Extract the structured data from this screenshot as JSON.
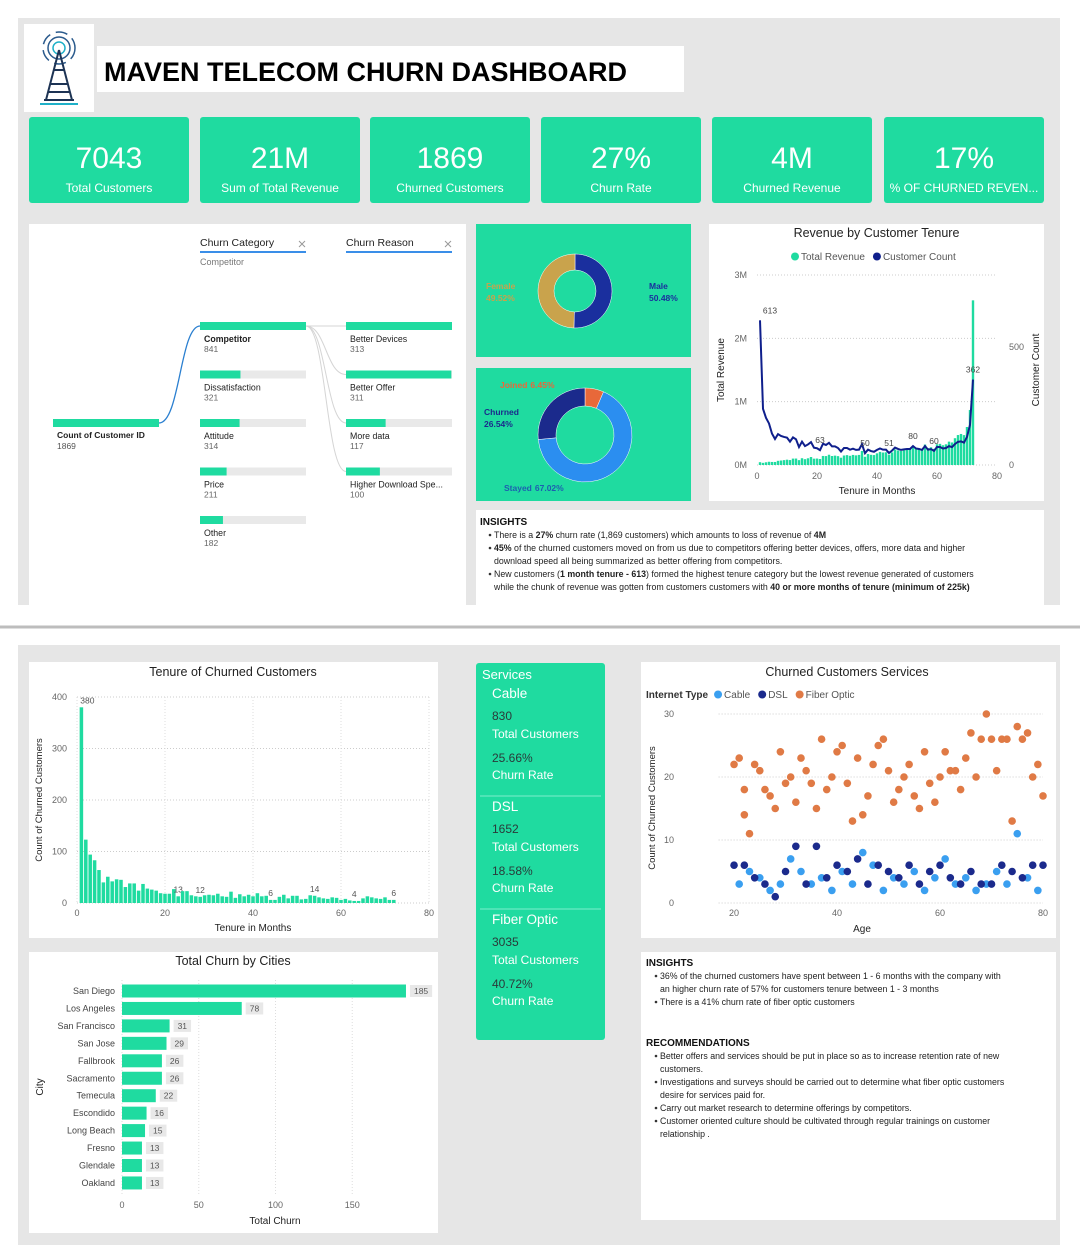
{
  "title": "MAVEN TELECOM CHURN DASHBOARD",
  "kpis": [
    {
      "value": "7043",
      "label": "Total Customers"
    },
    {
      "value": "21M",
      "label": "Sum of Total Revenue"
    },
    {
      "value": "1869",
      "label": "Churned Customers"
    },
    {
      "value": "27%",
      "label": "Churn Rate"
    },
    {
      "value": "4M",
      "label": "Churned Revenue"
    },
    {
      "value": "17%",
      "label": "% OF CHURNED REVEN..."
    }
  ],
  "decomposition": {
    "root": {
      "label": "Count of Customer ID",
      "value": 1869
    },
    "levels": [
      {
        "title": "Churn Category",
        "filter": "Competitor",
        "nodes": [
          {
            "label": "Competitor",
            "value": 841
          },
          {
            "label": "Dissatisfaction",
            "value": 321
          },
          {
            "label": "Attitude",
            "value": 314
          },
          {
            "label": "Price",
            "value": 211
          },
          {
            "label": "Other",
            "value": 182
          }
        ]
      },
      {
        "title": "Churn Reason",
        "nodes": [
          {
            "label": "Better Devices",
            "value": 313
          },
          {
            "label": "Better Offer",
            "value": 311
          },
          {
            "label": "More data",
            "value": 117
          },
          {
            "label": "Higher Download Spe...",
            "value": 100
          }
        ]
      }
    ]
  },
  "chart_data": [
    {
      "type": "donut",
      "categories": [
        "Male",
        "Female"
      ],
      "values": [
        50.48,
        49.52
      ],
      "value_labels": [
        "50.48%",
        "49.52%"
      ],
      "colors": [
        "#1a2f9e",
        "#c9a34c"
      ]
    },
    {
      "type": "donut",
      "categories": [
        "Joined",
        "Stayed",
        "Churned"
      ],
      "values": [
        6.45,
        67.02,
        26.54
      ],
      "value_labels": [
        "6.45%",
        "67.02%",
        "26.54%"
      ],
      "colors": [
        "#e8683a",
        "#2b8ef0",
        "#1b2a8c"
      ]
    },
    {
      "type": "combo",
      "title": "Revenue by Customer Tenure",
      "x_label": "Tenure in Months",
      "y_label": "Total Revenue",
      "y2_label": "Customer Count",
      "x": [
        1,
        2,
        3,
        4,
        5,
        6,
        7,
        8,
        9,
        10,
        11,
        12,
        13,
        14,
        15,
        16,
        17,
        18,
        19,
        20,
        21,
        22,
        23,
        24,
        25,
        26,
        27,
        28,
        29,
        30,
        31,
        32,
        33,
        34,
        35,
        36,
        37,
        38,
        39,
        40,
        41,
        42,
        43,
        44,
        45,
        46,
        47,
        48,
        49,
        50,
        51,
        52,
        53,
        54,
        55,
        56,
        57,
        58,
        59,
        60,
        61,
        62,
        63,
        64,
        65,
        66,
        67,
        68,
        69,
        70,
        71,
        72
      ],
      "series": [
        {
          "name": "Total Revenue",
          "color": "#1fdba0",
          "kind": "bar",
          "values": [
            44000,
            34000,
            43000,
            51000,
            48000,
            48000,
            66000,
            71000,
            77000,
            84000,
            78000,
            101000,
            102000,
            77000,
            107000,
            92000,
            106000,
            126000,
            100000,
            102000,
            95000,
            143000,
            141000,
            162000,
            142000,
            148000,
            140000,
            115000,
            150000,
            156000,
            145000,
            159000,
            152000,
            159000,
            222000,
            130000,
            173000,
            161000,
            157000,
            184000,
            207000,
            197000,
            201000,
            162000,
            198000,
            245000,
            230000,
            221000,
            233000,
            245000,
            250000,
            300000,
            267000,
            264000,
            253000,
            323000,
            267000,
            280000,
            255000,
            328000,
            334000,
            312000,
            327000,
            369000,
            356000,
            423000,
            473000,
            490000,
            472000,
            600000,
            869000,
            2600000
          ]
        },
        {
          "name": "Customer Count",
          "color": "#0f1f8c",
          "kind": "line",
          "axis": "y2",
          "labeled_x": [
            1,
            21,
            36,
            44,
            52,
            59,
            72
          ],
          "values": [
            613,
            238,
            200,
            176,
            133,
            110,
            131,
            123,
            119,
            116,
            99,
            117,
            109,
            76,
            99,
            80,
            87,
            97,
            73,
            71,
            63,
            90,
            85,
            94,
            79,
            79,
            72,
            57,
            72,
            72,
            65,
            69,
            64,
            65,
            88,
            50,
            65,
            59,
            56,
            64,
            70,
            65,
            65,
            51,
            61,
            74,
            68,
            64,
            66,
            68,
            68,
            80,
            70,
            68,
            64,
            80,
            65,
            67,
            60,
            76,
            76,
            70,
            72,
            80,
            76,
            89,
            98,
            100,
            95,
            119,
            170,
            362
          ]
        }
      ],
      "xlim": [
        0,
        80
      ],
      "xticks": [
        0,
        20,
        40,
        60,
        80
      ],
      "ylim": [
        0,
        3000000
      ],
      "yticks": [
        {
          "value": 0,
          "label": "0M"
        },
        {
          "value": 1000000,
          "label": "1M"
        },
        {
          "value": 2000000,
          "label": "2M"
        },
        {
          "value": 3000000,
          "label": "3M"
        }
      ],
      "y2lim": [
        0,
        805
      ],
      "y2ticks": [
        0,
        500
      ],
      "grid": true
    },
    {
      "type": "bar",
      "title": "Tenure of Churned Customers",
      "x_label": "Tenure in Months",
      "y_label": "Count of Churned Customers",
      "color": "#1fdba0",
      "x": [
        1,
        2,
        3,
        4,
        5,
        6,
        7,
        8,
        9,
        10,
        11,
        12,
        13,
        14,
        15,
        16,
        17,
        18,
        19,
        20,
        21,
        22,
        23,
        24,
        25,
        26,
        27,
        28,
        29,
        30,
        31,
        32,
        33,
        34,
        35,
        36,
        37,
        38,
        39,
        40,
        41,
        42,
        43,
        44,
        45,
        46,
        47,
        48,
        49,
        50,
        51,
        52,
        53,
        54,
        55,
        56,
        57,
        58,
        59,
        60,
        61,
        62,
        63,
        64,
        65,
        66,
        67,
        68,
        69,
        70,
        71,
        72
      ],
      "values": [
        380,
        123,
        94,
        83,
        64,
        40,
        51,
        42,
        46,
        45,
        31,
        38,
        38,
        24,
        37,
        28,
        26,
        24,
        19,
        18,
        18,
        27,
        13,
        23,
        23,
        15,
        13,
        12,
        15,
        16,
        15,
        18,
        13,
        12,
        22,
        10,
        17,
        13,
        16,
        13,
        19,
        13,
        14,
        6,
        6,
        12,
        16,
        9,
        14,
        14,
        7,
        8,
        15,
        14,
        11,
        9,
        8,
        11,
        10,
        6,
        8,
        5,
        4,
        4,
        9,
        13,
        11,
        9,
        8,
        11,
        6,
        6
      ],
      "labeled_x": [
        1,
        23,
        28,
        44,
        54,
        63,
        72
      ],
      "xlim": [
        0,
        80
      ],
      "xticks": [
        0,
        20,
        40,
        60,
        80
      ],
      "ylim": [
        0,
        400
      ],
      "yticks": [
        0,
        100,
        200,
        300,
        400
      ],
      "grid": true
    },
    {
      "type": "hbar",
      "title": "Total Churn by Cities",
      "x_label": "Total Churn",
      "y_label": "City",
      "color": "#1fdba0",
      "categories": [
        "San Diego",
        "Los Angeles",
        "San Francisco",
        "San Jose",
        "Fallbrook",
        "Sacramento",
        "Temecula",
        "Escondido",
        "Long Beach",
        "Fresno",
        "Glendale",
        "Oakland"
      ],
      "values": [
        185,
        78,
        31,
        29,
        26,
        26,
        22,
        16,
        15,
        13,
        13,
        13
      ],
      "xlim": [
        0,
        200
      ],
      "xticks": [
        0,
        50,
        100,
        150
      ],
      "grid": true
    },
    {
      "type": "scatter",
      "title": "Churned Customers Services",
      "x_label": "Age",
      "y_label": "Count of Churned Customers",
      "legend_title": "Internet Type",
      "series": [
        {
          "name": "Cable",
          "color": "#3a9ff0",
          "x": [
            21,
            23,
            25,
            27,
            29,
            31,
            33,
            35,
            37,
            39,
            41,
            43,
            45,
            47,
            49,
            51,
            53,
            55,
            57,
            59,
            61,
            63,
            65,
            67,
            69,
            71,
            73,
            75,
            77,
            79
          ],
          "values": [
            3,
            5,
            4,
            2,
            3,
            7,
            5,
            3,
            4,
            2,
            5,
            3,
            8,
            6,
            2,
            4,
            3,
            5,
            2,
            4,
            7,
            3,
            4,
            2,
            3,
            5,
            3,
            11,
            4,
            2
          ]
        },
        {
          "name": "DSL",
          "color": "#1b2a8c",
          "x": [
            20,
            22,
            24,
            26,
            28,
            30,
            32,
            34,
            36,
            38,
            40,
            42,
            44,
            46,
            48,
            50,
            52,
            54,
            56,
            58,
            60,
            62,
            64,
            66,
            68,
            70,
            72,
            74,
            76,
            78,
            80
          ],
          "values": [
            6,
            6,
            4,
            3,
            1,
            5,
            9,
            3,
            9,
            4,
            6,
            5,
            7,
            3,
            6,
            5,
            4,
            6,
            3,
            5,
            6,
            4,
            3,
            5,
            3,
            3,
            6,
            5,
            4,
            6,
            6
          ]
        },
        {
          "name": "Fiber Optic",
          "color": "#e07a45",
          "x": [
            20,
            21,
            22,
            22,
            23,
            24,
            25,
            26,
            27,
            28,
            29,
            30,
            31,
            32,
            33,
            34,
            35,
            36,
            37,
            38,
            39,
            40,
            41,
            42,
            43,
            44,
            45,
            46,
            47,
            48,
            49,
            50,
            51,
            52,
            53,
            54,
            55,
            56,
            57,
            58,
            59,
            60,
            61,
            62,
            63,
            64,
            65,
            66,
            67,
            68,
            69,
            70,
            71,
            72,
            73,
            74,
            75,
            76,
            77,
            78,
            79,
            80
          ],
          "values": [
            22,
            23,
            18,
            14,
            11,
            22,
            21,
            18,
            17,
            15,
            24,
            19,
            20,
            16,
            23,
            21,
            19,
            15,
            26,
            18,
            20,
            24,
            25,
            19,
            13,
            23,
            14,
            17,
            22,
            25,
            26,
            21,
            16,
            18,
            20,
            22,
            17,
            15,
            24,
            19,
            16,
            20,
            24,
            21,
            21,
            18,
            23,
            27,
            20,
            26,
            30,
            26,
            21,
            26,
            26,
            13,
            28,
            26,
            27,
            20,
            22,
            17
          ]
        }
      ],
      "xlim": [
        17,
        80
      ],
      "xticks": [
        20,
        40,
        60,
        80
      ],
      "ylim": [
        0,
        30
      ],
      "yticks": [
        0,
        10,
        20,
        30
      ],
      "grid": true
    }
  ],
  "services": {
    "title": "Services",
    "items": [
      {
        "name": "Cable",
        "customers": "830",
        "customers_label": "Total Customers",
        "churn_rate": "25.66%",
        "churn_label": "Churn Rate"
      },
      {
        "name": "DSL",
        "customers": "1652",
        "customers_label": "Total Customers",
        "churn_rate": "18.58%",
        "churn_label": "Churn Rate"
      },
      {
        "name": "Fiber Optic",
        "customers": "3035",
        "customers_label": "Total Customers",
        "churn_rate": "40.72%",
        "churn_label": "Churn Rate"
      }
    ]
  },
  "insights": {
    "title": "INSIGHTS",
    "bullets": [
      {
        "lines": [
          [
            {
              "text": "There is a "
            },
            {
              "text": "27%",
              "bold": true
            },
            {
              "text": " churn rate (1,869 customers) which amounts to loss of revenue of "
            },
            {
              "text": "4M",
              "bold": true
            }
          ]
        ]
      },
      {
        "lines": [
          [
            {
              "text": "45%",
              "bold": true
            },
            {
              "text": " of the churned customers moved on from us due to competitors offering better devices, offers, more data and higher"
            }
          ],
          [
            {
              "text": "download speed all being summarized as better offering from competitors."
            }
          ]
        ]
      },
      {
        "lines": [
          [
            {
              "text": "New customers ("
            },
            {
              "text": "1 month tenure - 613",
              "bold": true
            },
            {
              "text": ") formed the highest tenure category but the lowest revenue generated of customers"
            }
          ],
          [
            {
              "text": "while the chunk of revenue was gotten from customers customers with "
            },
            {
              "text": "40 or more months of tenure (minimum of 225k)",
              "bold": true
            }
          ]
        ]
      }
    ]
  },
  "insights_2": {
    "title": "INSIGHTS",
    "bullets": [
      {
        "lines": [
          [
            {
              "text": "36% of the churned customers have spent between 1 - 6 months with the company with"
            }
          ],
          [
            {
              "text": "an higher churn rate of 57% for customers tenure between 1 - 3 months"
            }
          ]
        ]
      },
      {
        "lines": [
          [
            {
              "text": "There is a 41% churn rate of fiber optic customers"
            }
          ]
        ]
      }
    ]
  },
  "recommendations": {
    "title": "RECOMMENDATIONS",
    "bullets": [
      {
        "lines": [
          [
            {
              "text": "Better offers and services should be put in place so as to increase retention rate of new"
            }
          ],
          [
            {
              "text": "customers."
            }
          ]
        ]
      },
      {
        "lines": [
          [
            {
              "text": "Investigations and surveys should be carried out to determine what fiber optic customers"
            }
          ],
          [
            {
              "text": "desire for services paid for."
            }
          ]
        ]
      },
      {
        "lines": [
          [
            {
              "text": "Carry out market research to determine offerings by competitors."
            }
          ]
        ]
      },
      {
        "lines": [
          [
            {
              "text": "Customer oriented culture should be cultivated through regular trainings on customer"
            }
          ],
          [
            {
              "text": "relationship ."
            }
          ]
        ]
      }
    ]
  }
}
